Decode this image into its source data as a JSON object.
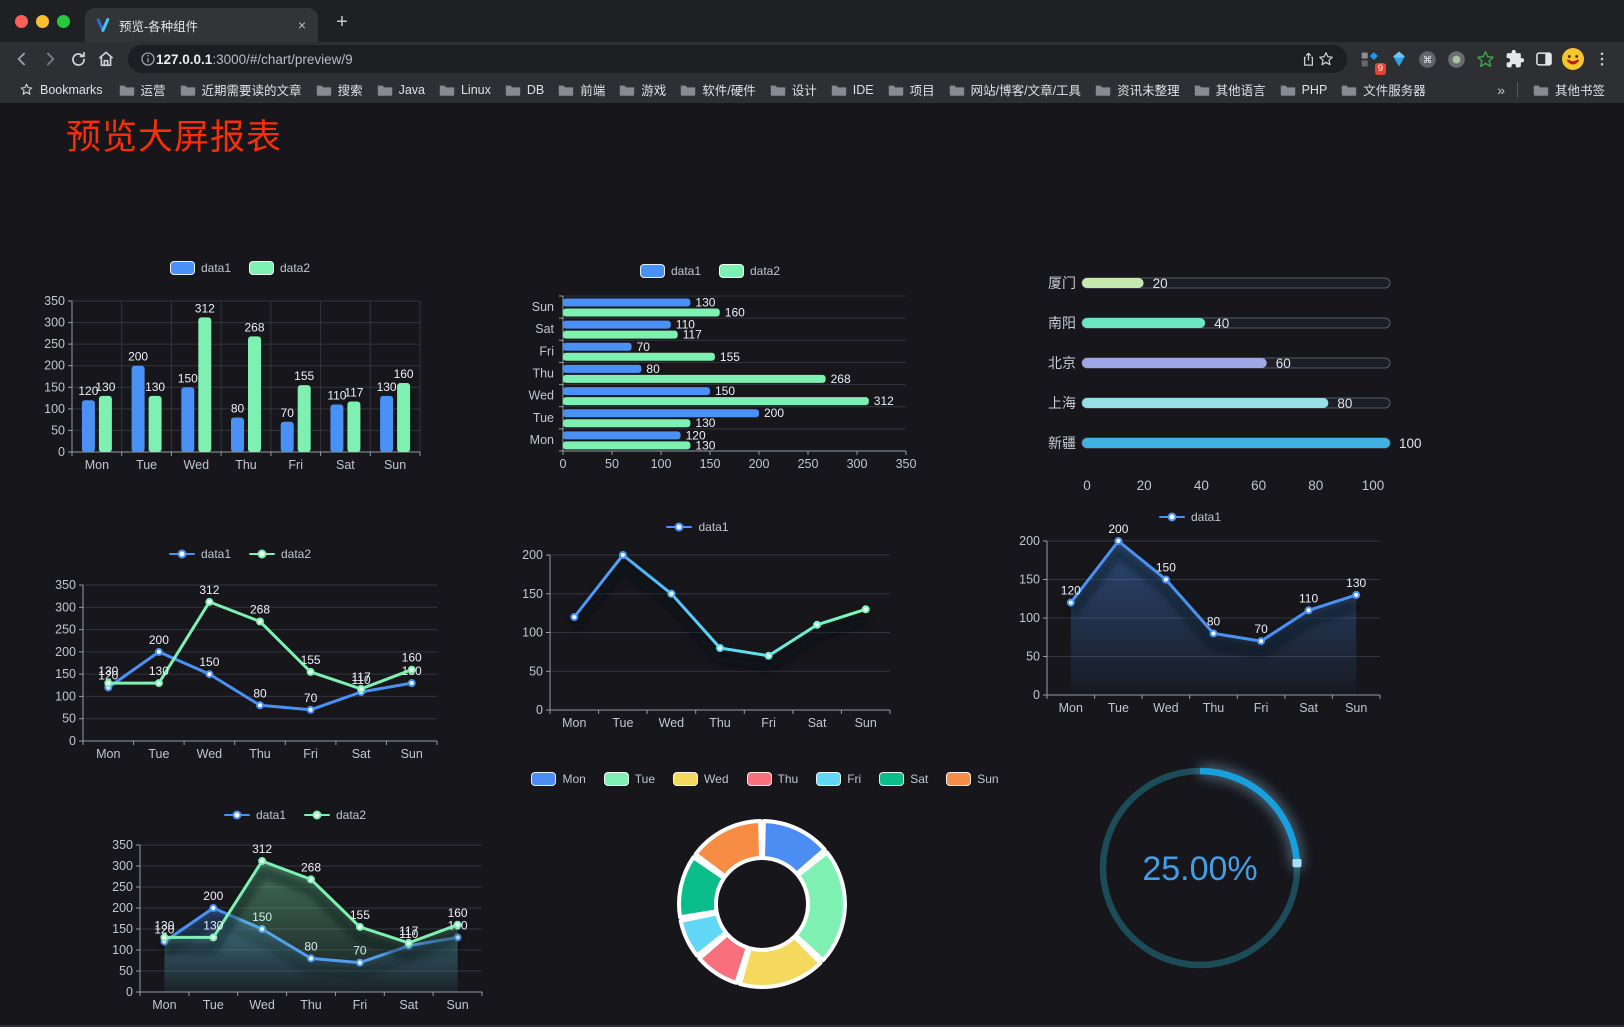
{
  "browser": {
    "tab_title": "预览-各种组件",
    "close_tab_label": "×",
    "new_tab_label": "+",
    "url_host": "127.0.0.1",
    "url_rest": ":3000/#/chart/preview/9",
    "bookmarks_label": "Bookmarks",
    "bookmarks": [
      "运营",
      "近期需要读的文章",
      "搜索",
      "Java",
      "Linux",
      "DB",
      "前端",
      "游戏",
      "软件/硬件",
      "设计",
      "IDE",
      "项目",
      "网站/博客/文章/工具",
      "资讯未整理",
      "其他语言",
      "PHP",
      "文件服务器"
    ],
    "bookmarks_overflow": "»",
    "other_bookmarks": "其他书签",
    "extension_badge": "9"
  },
  "page": {
    "title": "预览大屏报表",
    "title_color": "#fb2e06",
    "background": "#16161b"
  },
  "chart_data": [
    {
      "id": "bar-chart",
      "type": "bar",
      "categories": [
        "Mon",
        "Tue",
        "Wed",
        "Thu",
        "Fri",
        "Sat",
        "Sun"
      ],
      "series": [
        {
          "name": "data1",
          "color": "#4a91f5",
          "values": [
            120,
            200,
            150,
            80,
            70,
            110,
            130
          ]
        },
        {
          "name": "data2",
          "color": "#7df0b2",
          "values": [
            130,
            130,
            312,
            268,
            155,
            117,
            160
          ]
        }
      ],
      "ymax": 350,
      "ystep": 50,
      "yticks": [
        0,
        50,
        100,
        150,
        200,
        250,
        300,
        350
      ],
      "legend_position": "top",
      "grid": true
    },
    {
      "id": "horizontal-bar-chart",
      "type": "hbar",
      "categories_top_to_bottom": [
        "Sun",
        "Sat",
        "Fri",
        "Thu",
        "Wed",
        "Tue",
        "Mon"
      ],
      "series": [
        {
          "name": "data1",
          "color": "#4a91f5",
          "values": [
            130,
            110,
            70,
            80,
            150,
            200,
            120
          ]
        },
        {
          "name": "data2",
          "color": "#7df0b2",
          "values": [
            160,
            117,
            155,
            268,
            312,
            130,
            130
          ]
        }
      ],
      "xmax": 350,
      "xstep": 50,
      "xticks": [
        0,
        50,
        100,
        150,
        200,
        250,
        300,
        350
      ],
      "legend_position": "top",
      "grid": true
    },
    {
      "id": "capsule-bar-chart",
      "type": "capsule",
      "items": [
        {
          "label": "厦门",
          "value": 20,
          "color": "#c4ebad"
        },
        {
          "label": "南阳",
          "value": 40,
          "color": "#6be6c1"
        },
        {
          "label": "北京",
          "value": 60,
          "color": "#a0a7e6"
        },
        {
          "label": "上海",
          "value": 80,
          "color": "#96dee8"
        },
        {
          "label": "新疆",
          "value": 100,
          "color": "#3fb1e3"
        }
      ],
      "xmax": 100,
      "xticks": [
        0,
        20,
        40,
        60,
        80,
        100
      ]
    },
    {
      "id": "line-chart",
      "type": "line",
      "categories": [
        "Mon",
        "Tue",
        "Wed",
        "Thu",
        "Fri",
        "Sat",
        "Sun"
      ],
      "series": [
        {
          "name": "data1",
          "color": "#4a91f5",
          "values": [
            120,
            200,
            150,
            80,
            70,
            110,
            130
          ],
          "labels": true
        },
        {
          "name": "data2",
          "color": "#7df0b2",
          "values": [
            130,
            130,
            312,
            268,
            155,
            117,
            160
          ],
          "labels": true
        }
      ],
      "ymax": 350,
      "ystep": 50,
      "yticks": [
        0,
        50,
        100,
        150,
        200,
        250,
        300,
        350
      ],
      "legend_position": "top",
      "grid": true
    },
    {
      "id": "gradient-line-chart",
      "type": "line",
      "variant": "gradient",
      "categories": [
        "Mon",
        "Tue",
        "Wed",
        "Thu",
        "Fri",
        "Sat",
        "Sun"
      ],
      "series": [
        {
          "name": "data1",
          "color": "gradient",
          "values": [
            120,
            200,
            150,
            80,
            70,
            110,
            130
          ],
          "labels": false
        }
      ],
      "gradient": [
        "#4992ff",
        "#58d9f9",
        "#7cffb2"
      ],
      "point_colors": [
        "#4992ff",
        "#4a97fb",
        "#53b5f3",
        "#58d9f9",
        "#63e8d8",
        "#70f4c4",
        "#7cffb2"
      ],
      "ymax": 200,
      "ystep": 50,
      "yticks": [
        0,
        50,
        100,
        150,
        200
      ],
      "legend_position": "top",
      "grid": true
    },
    {
      "id": "area-line-chart",
      "type": "line",
      "categories": [
        "Mon",
        "Tue",
        "Wed",
        "Thu",
        "Fri",
        "Sat",
        "Sun"
      ],
      "series": [
        {
          "name": "data1",
          "color": "#4a91f5",
          "values": [
            120,
            200,
            150,
            80,
            70,
            110,
            130
          ],
          "labels": true,
          "area": true
        }
      ],
      "ymax": 200,
      "ystep": 50,
      "yticks": [
        0,
        50,
        100,
        150,
        200
      ],
      "legend_position": "top",
      "grid": true
    },
    {
      "id": "stacked-area-line-chart",
      "type": "line",
      "categories": [
        "Mon",
        "Tue",
        "Wed",
        "Thu",
        "Fri",
        "Sat",
        "Sun"
      ],
      "series": [
        {
          "name": "data1",
          "color": "#4a91f5",
          "values": [
            120,
            200,
            150,
            80,
            70,
            110,
            130
          ],
          "labels": true,
          "area": true
        },
        {
          "name": "data2",
          "color": "#7df0b2",
          "values": [
            130,
            130,
            312,
            268,
            155,
            117,
            160
          ],
          "labels": true,
          "area": true
        }
      ],
      "ymax": 350,
      "ystep": 50,
      "yticks": [
        0,
        50,
        100,
        150,
        200,
        250,
        300,
        350
      ],
      "legend_position": "top",
      "grid": true
    },
    {
      "id": "rose-pie-chart",
      "type": "pie",
      "items": [
        {
          "name": "Mon",
          "value": 120,
          "color": "#4b8df2"
        },
        {
          "name": "Tue",
          "value": 200,
          "color": "#7df0b2"
        },
        {
          "name": "Wed",
          "value": 150,
          "color": "#f5d95f"
        },
        {
          "name": "Thu",
          "value": 80,
          "color": "#f9707c"
        },
        {
          "name": "Fri",
          "value": 70,
          "color": "#61d6f5"
        },
        {
          "name": "Sat",
          "value": 110,
          "color": "#0bbd8b"
        },
        {
          "name": "Sun",
          "value": 130,
          "color": "#f78d44"
        }
      ],
      "legend_position": "top"
    },
    {
      "id": "progress-gauge",
      "type": "gauge",
      "label": "25.00%",
      "percent": 25,
      "arc_color": "#18a0dd",
      "track_color": "#1d4c59",
      "text_color": "#419fe8"
    }
  ]
}
